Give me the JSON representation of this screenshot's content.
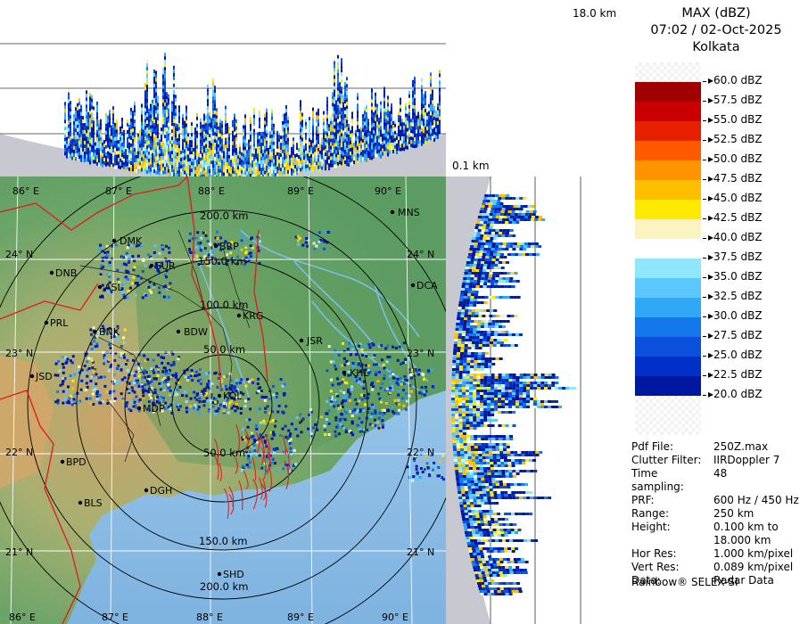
{
  "panel": {
    "title": "MAX (dBZ)",
    "datetime": "07:02 / 02-Oct-2025",
    "station": "Kolkata"
  },
  "top_height_label": "18.0 km",
  "bottom_height_label": "0.1 km",
  "legend": [
    {
      "label": "60.0 dBZ",
      "color": "checker"
    },
    {
      "label": "57.5 dBZ",
      "color": "#a00000"
    },
    {
      "label": "55.0 dBZ",
      "color": "#c80000"
    },
    {
      "label": "52.5 dBZ",
      "color": "#e62000"
    },
    {
      "label": "50.0 dBZ",
      "color": "#ff5a00"
    },
    {
      "label": "47.5 dBZ",
      "color": "#ff9400"
    },
    {
      "label": "45.0 dBZ",
      "color": "#ffbf00"
    },
    {
      "label": "42.5 dBZ",
      "color": "#ffe900"
    },
    {
      "label": "40.0 dBZ",
      "color": "#fbf4c0"
    },
    {
      "label": "37.5 dBZ",
      "color": "#ffffff"
    },
    {
      "label": "35.0 dBZ",
      "color": "#8ee6ff"
    },
    {
      "label": "32.5 dBZ",
      "color": "#5cc8ff"
    },
    {
      "label": "30.0 dBZ",
      "color": "#30a8f5"
    },
    {
      "label": "27.5 dBZ",
      "color": "#1478ea"
    },
    {
      "label": "25.0 dBZ",
      "color": "#0a50dc"
    },
    {
      "label": "22.5 dBZ",
      "color": "#0030c8"
    },
    {
      "label": "20.0 dBZ",
      "color": "#0018a0"
    }
  ],
  "info": [
    {
      "key": "Pdf File:",
      "value": "250Z.max"
    },
    {
      "key": "Clutter Filter:",
      "value": "IIRDoppler 7"
    },
    {
      "key": "Time sampling:",
      "value": "48"
    },
    {
      "key": "PRF:",
      "value": "600 Hz / 450 Hz"
    },
    {
      "key": "Range:",
      "value": "250 km"
    },
    {
      "key": "Height:",
      "value": "0.100 km to 18.000 km"
    },
    {
      "key": "Hor Res:",
      "value": "1.000 km/pixel"
    },
    {
      "key": "Vert Res:",
      "value": "0.089 km/pixel"
    },
    {
      "key": "Data:",
      "value": "Radar Data"
    }
  ],
  "credit": "Rainbow® SELEX-SI",
  "map": {
    "lon_labels_top": [
      "86° E",
      "87° E",
      "88° E",
      "89° E",
      "90° E"
    ],
    "lon_labels_bottom": [
      "86° E",
      "87° E",
      "88° E",
      "89° E",
      "90° E"
    ],
    "lat_labels_right": [
      "24° N",
      "23° N",
      "22° N",
      "21° N"
    ],
    "lat_labels_left": [
      "24° N",
      "23° N",
      "22° N",
      "21° N"
    ],
    "ring_labels": [
      "200.0 km",
      "150.0 km",
      "100.0 km",
      "50.0 km",
      "50.0 km",
      "150.0 km",
      "200.0 km"
    ],
    "cities": [
      "MNS",
      "DMK",
      "BRP",
      "DNB",
      "SUR",
      "ASL",
      "DCA",
      "BNK",
      "KRG",
      "PRL",
      "BDW",
      "JSR",
      "JSD",
      "KHL",
      "MDP",
      "KOL",
      "BPD",
      "DGH",
      "BLS",
      "SHD"
    ]
  }
}
